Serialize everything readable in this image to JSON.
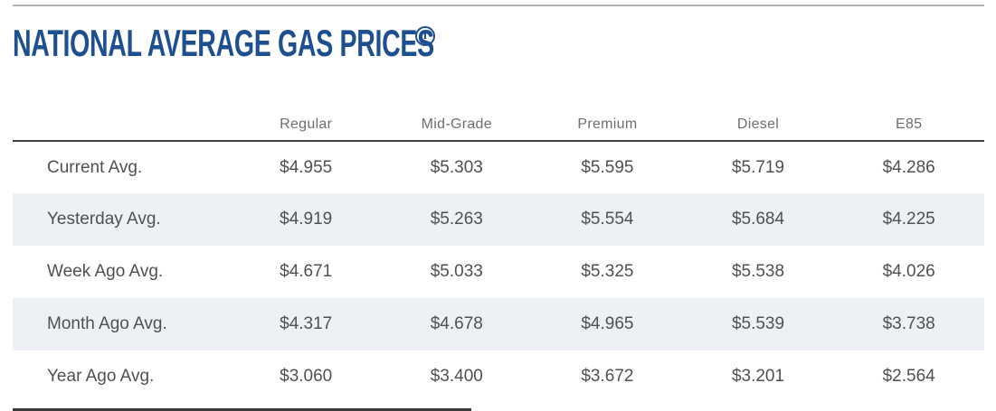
{
  "page": {
    "title": "NATIONAL AVERAGE GAS PRICES",
    "info_glyph": "i"
  },
  "table": {
    "columns": [
      "Regular",
      "Mid-Grade",
      "Premium",
      "Diesel",
      "E85"
    ],
    "rows": [
      {
        "label": "Current Avg.",
        "values": [
          "$4.955",
          "$5.303",
          "$5.595",
          "$5.719",
          "$4.286"
        ]
      },
      {
        "label": "Yesterday Avg.",
        "values": [
          "$4.919",
          "$5.263",
          "$5.554",
          "$5.684",
          "$4.225"
        ]
      },
      {
        "label": "Week Ago Avg.",
        "values": [
          "$4.671",
          "$5.033",
          "$5.325",
          "$5.538",
          "$4.026"
        ]
      },
      {
        "label": "Month Ago Avg.",
        "values": [
          "$4.317",
          "$4.678",
          "$4.965",
          "$5.539",
          "$3.738"
        ]
      },
      {
        "label": "Year Ago Avg.",
        "values": [
          "$3.060",
          "$3.400",
          "$3.672",
          "$3.201",
          "$2.564"
        ]
      }
    ]
  },
  "colors": {
    "title_blue": "#1d4f91",
    "header_text_gray": "#6d6e71",
    "body_text_gray": "#4f5052",
    "stripe_background": "#edf1f6",
    "top_rule_gray": "#b2b2b2",
    "header_rule_dark": "#414141"
  }
}
